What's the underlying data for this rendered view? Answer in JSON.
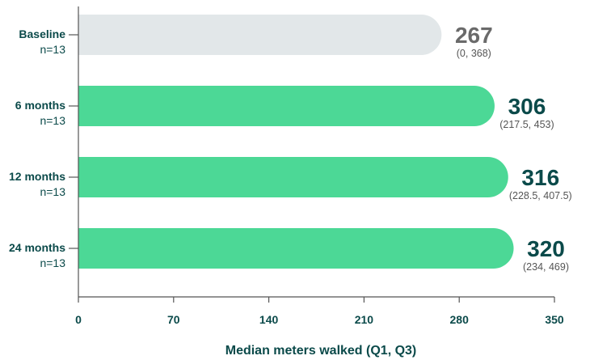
{
  "chart_data": {
    "type": "bar",
    "orientation": "horizontal",
    "categories": [
      "Baseline",
      "6 months",
      "12 months",
      "24 months"
    ],
    "sample_labels": [
      "n=13",
      "n=13",
      "n=13",
      "n=13"
    ],
    "values": [
      267,
      306,
      316,
      320
    ],
    "value_labels": [
      "267",
      "306",
      "316",
      "320"
    ],
    "interval_labels": [
      "(0, 368)",
      "(217.5, 453)",
      "(228.5, 407.5)",
      "(234, 469)"
    ],
    "xlabel": "Median meters walked (Q1, Q3)",
    "ylabel": "",
    "xlim": [
      0,
      350
    ],
    "xticks": [
      0,
      70,
      140,
      210,
      280,
      350
    ],
    "xtick_labels": [
      "0",
      "70",
      "140",
      "210",
      "280",
      "350"
    ],
    "grid": false,
    "colors": {
      "baseline_bar": "#e2e7e9",
      "followup_bar": "#4cd896",
      "baseline_value": "#6a6a6a",
      "followup_value": "#0b4a4a",
      "axis": "#555555",
      "text": "#0b4a4a"
    }
  }
}
